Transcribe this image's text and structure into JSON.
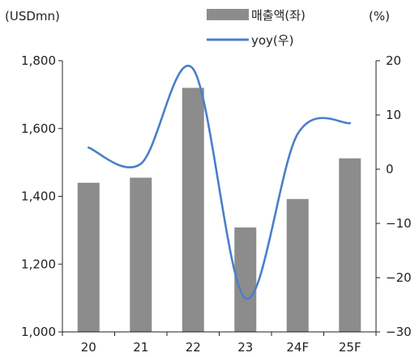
{
  "chart_data": {
    "type": "bar+line",
    "categories": [
      "20",
      "21",
      "22",
      "23",
      "24F",
      "25F"
    ],
    "series": [
      {
        "name": "매출액(좌)",
        "type": "bar",
        "axis": "left",
        "color": "#8c8c8c",
        "values": [
          1440,
          1455,
          1720,
          1308,
          1392,
          1512
        ]
      },
      {
        "name": "yoy(우)",
        "type": "line",
        "axis": "right",
        "color": "#4a7fc8",
        "values": [
          4.0,
          1.0,
          18.5,
          -23.8,
          6.5,
          8.5
        ]
      }
    ],
    "y_left": {
      "label": "(USDmn)",
      "min": 1000,
      "max": 1800,
      "ticks": [
        1000,
        1200,
        1400,
        1600,
        1800
      ],
      "tick_labels": [
        "1,000",
        "1,200",
        "1,400",
        "1,600",
        "1,800"
      ]
    },
    "y_right": {
      "label": "(%)",
      "min": -30,
      "max": 20,
      "ticks": [
        -30,
        -20,
        -10,
        0,
        10,
        20
      ],
      "tick_labels": [
        "−30",
        "−20",
        "−10",
        "0",
        "10",
        "20"
      ]
    },
    "grid": false,
    "legend_position": "top"
  }
}
